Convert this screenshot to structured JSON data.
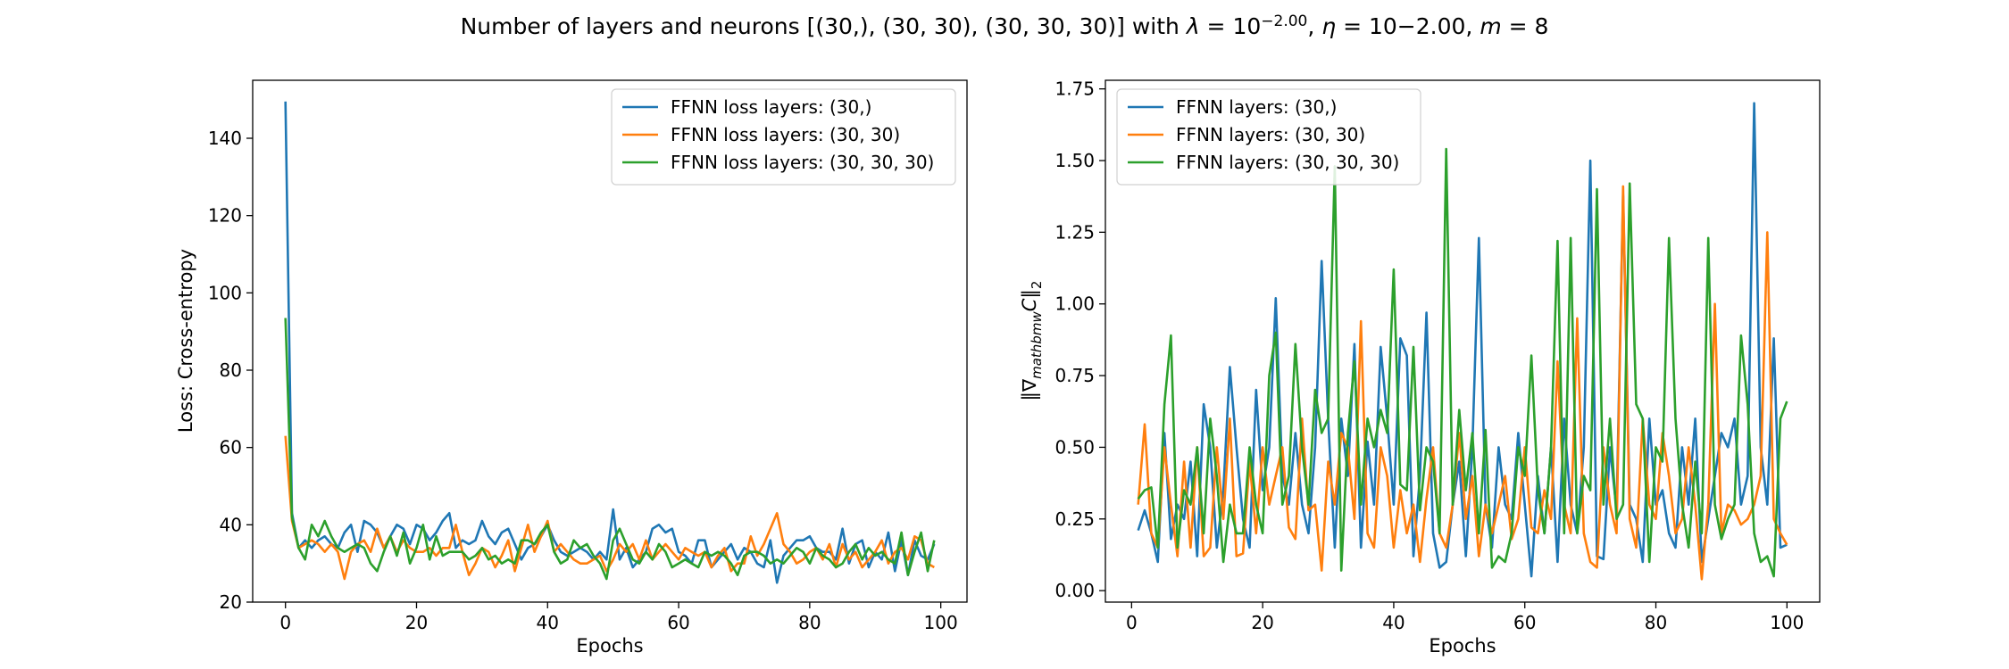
{
  "figure": {
    "suptitle_text": "Number of layers and neurons [(30,), (30, 30), (30, 30, 30)] with "
  },
  "chart_data": [
    {
      "type": "line",
      "xlabel": "Epochs",
      "ylabel": "Loss: Cross-entropy",
      "xlim": [
        -5,
        104
      ],
      "ylim": [
        20,
        155
      ],
      "xticks": [
        0,
        20,
        40,
        60,
        80,
        100
      ],
      "yticks": [
        20,
        40,
        60,
        80,
        100,
        120,
        140
      ],
      "grid": false,
      "legend_position": "top-right",
      "x_start": 0,
      "series": [
        {
          "name": "FFNN loss layers: (30,)",
          "color": "#1f77b4",
          "values": [
            149.5,
            43,
            34,
            36,
            34,
            36,
            37,
            35,
            34,
            38,
            40,
            33,
            41,
            40,
            38,
            34,
            37,
            40,
            39,
            35,
            40,
            39,
            36,
            38,
            41,
            43,
            34,
            36,
            35,
            36,
            41,
            37,
            35,
            38,
            39,
            35,
            31,
            34,
            35,
            37,
            40,
            36,
            33,
            32,
            33,
            34,
            33,
            31,
            33,
            31,
            44,
            31,
            34,
            29,
            31,
            33,
            39,
            40,
            38,
            39,
            33,
            32,
            30,
            36,
            36,
            29,
            31,
            33,
            35,
            31,
            34,
            33,
            30,
            29,
            36,
            25,
            32,
            34,
            36,
            36,
            37,
            34,
            33,
            33,
            31,
            39,
            30,
            35,
            36,
            29,
            33,
            31,
            38,
            28,
            36,
            27,
            36,
            32,
            31,
            35
          ]
        },
        {
          "name": "FFNN loss layers: (30, 30)",
          "color": "#ff7f0e",
          "values": [
            63,
            41,
            34,
            35,
            36,
            35,
            33,
            35,
            33,
            26,
            33,
            35,
            36,
            33,
            39,
            34,
            37,
            33,
            36,
            34,
            33,
            33,
            34,
            32,
            34,
            34,
            40,
            33,
            27,
            30,
            34,
            33,
            29,
            32,
            36,
            28,
            34,
            40,
            33,
            37,
            41,
            33,
            35,
            33,
            31,
            30,
            30,
            31,
            32,
            28,
            31,
            35,
            33,
            35,
            31,
            36,
            31,
            33,
            35,
            33,
            31,
            34,
            33,
            32,
            33,
            29,
            32,
            34,
            28,
            30,
            30,
            37,
            32,
            35,
            39,
            43,
            35,
            33,
            30,
            31,
            33,
            34,
            31,
            35,
            29,
            35,
            31,
            33,
            29,
            31,
            33,
            36,
            30,
            33,
            34,
            31,
            37,
            36,
            30,
            29
          ]
        },
        {
          "name": "FFNN loss layers: (30, 30, 30)",
          "color": "#2ca02c",
          "values": [
            93.5,
            42,
            34,
            31,
            40,
            37,
            41,
            37,
            34,
            33,
            34,
            35,
            34,
            30,
            28,
            33,
            37,
            32,
            38,
            30,
            34,
            40,
            31,
            37,
            32,
            33,
            33,
            33,
            31,
            32,
            34,
            31,
            32,
            30,
            31,
            30,
            36,
            36,
            35,
            38,
            40,
            33,
            30,
            31,
            36,
            34,
            35,
            32,
            30,
            26,
            36,
            39,
            35,
            31,
            30,
            33,
            31,
            35,
            33,
            29,
            30,
            31,
            30,
            29,
            33,
            32,
            33,
            32,
            30,
            27,
            32,
            33,
            33,
            32,
            30,
            31,
            30,
            32,
            34,
            33,
            30,
            34,
            32,
            31,
            29,
            30,
            33,
            35,
            31,
            34,
            32,
            33,
            31,
            30,
            38,
            27,
            33,
            38,
            28,
            36
          ]
        }
      ]
    },
    {
      "type": "line",
      "xlabel": "Epochs",
      "ylabel_base": "‖∇",
      "ylabel_sub": "mathbmw",
      "ylabel_mid": "C‖",
      "ylabel_sub2": "2",
      "xlim": [
        -4,
        105
      ],
      "ylim": [
        -0.04,
        1.78
      ],
      "xticks": [
        0,
        20,
        40,
        60,
        80,
        100
      ],
      "yticks": [
        "0.00",
        "0.25",
        "0.50",
        "0.75",
        "1.00",
        "1.25",
        "1.50",
        "1.75"
      ],
      "grid": false,
      "legend_position": "top-left",
      "x_start": 1,
      "series": [
        {
          "name": "FFNN layers: (30,)",
          "color": "#1f77b4",
          "values": [
            0.21,
            0.28,
            0.2,
            0.1,
            0.55,
            0.18,
            0.3,
            0.25,
            0.45,
            0.12,
            0.65,
            0.5,
            0.15,
            0.35,
            0.78,
            0.5,
            0.25,
            0.15,
            0.7,
            0.35,
            0.5,
            1.02,
            0.4,
            0.3,
            0.55,
            0.3,
            0.2,
            0.5,
            1.15,
            0.6,
            0.15,
            0.6,
            0.4,
            0.86,
            0.15,
            0.52,
            0.3,
            0.85,
            0.6,
            0.3,
            0.88,
            0.82,
            0.12,
            0.4,
            0.97,
            0.2,
            0.08,
            0.1,
            0.3,
            0.45,
            0.12,
            0.5,
            1.23,
            0.3,
            0.15,
            0.5,
            0.3,
            0.25,
            0.55,
            0.3,
            0.05,
            0.4,
            0.2,
            0.5,
            0.1,
            0.6,
            0.3,
            0.2,
            0.5,
            1.5,
            0.12,
            0.11,
            0.5,
            0.28,
            1.38,
            0.3,
            0.25,
            0.1,
            0.6,
            0.3,
            0.35,
            0.2,
            0.15,
            0.5,
            0.3,
            0.6,
            0.1,
            0.25,
            0.4,
            0.55,
            0.5,
            0.6,
            0.3,
            0.4,
            1.7,
            0.5,
            0.3,
            0.88,
            0.15,
            0.16
          ]
        },
        {
          "name": "FFNN layers: (30, 30)",
          "color": "#ff7f0e",
          "values": [
            0.3,
            0.58,
            0.2,
            0.15,
            0.5,
            0.3,
            0.12,
            0.45,
            0.15,
            0.5,
            0.12,
            0.15,
            0.5,
            0.25,
            0.6,
            0.12,
            0.13,
            0.45,
            0.2,
            0.5,
            0.3,
            0.4,
            0.5,
            0.22,
            0.18,
            0.6,
            0.28,
            0.3,
            0.07,
            0.45,
            0.3,
            0.55,
            0.5,
            0.25,
            0.94,
            0.2,
            0.15,
            0.5,
            0.4,
            0.15,
            0.35,
            0.2,
            0.3,
            0.1,
            0.32,
            0.5,
            0.2,
            0.15,
            0.3,
            0.55,
            0.25,
            0.4,
            0.12,
            0.3,
            0.2,
            0.3,
            0.4,
            0.18,
            0.25,
            0.5,
            0.22,
            0.2,
            0.35,
            0.25,
            0.8,
            0.3,
            0.2,
            0.95,
            0.2,
            0.1,
            0.08,
            0.5,
            0.3,
            0.2,
            1.41,
            0.25,
            0.15,
            0.6,
            0.3,
            0.25,
            0.55,
            0.4,
            0.2,
            0.25,
            0.5,
            0.3,
            0.04,
            0.3,
            1.0,
            0.2,
            0.3,
            0.28,
            0.23,
            0.25,
            0.3,
            0.4,
            1.25,
            0.25,
            0.2,
            0.16
          ]
        },
        {
          "name": "FFNN layers: (30, 30, 30)",
          "color": "#2ca02c",
          "values": [
            0.32,
            0.35,
            0.36,
            0.15,
            0.65,
            0.89,
            0.15,
            0.35,
            0.3,
            0.5,
            0.2,
            0.6,
            0.4,
            0.1,
            0.3,
            0.2,
            0.2,
            0.5,
            0.3,
            0.2,
            0.75,
            0.9,
            0.3,
            0.4,
            0.86,
            0.5,
            0.3,
            0.7,
            0.55,
            0.6,
            1.48,
            0.07,
            0.55,
            0.8,
            0.3,
            0.6,
            0.5,
            0.63,
            0.55,
            1.12,
            0.37,
            0.35,
            0.85,
            0.28,
            0.5,
            0.45,
            0.2,
            1.54,
            0.3,
            0.63,
            0.35,
            0.55,
            0.2,
            0.56,
            0.08,
            0.12,
            0.1,
            0.2,
            0.5,
            0.4,
            0.82,
            0.35,
            0.2,
            0.5,
            1.22,
            0.2,
            1.23,
            0.2,
            0.4,
            0.35,
            1.4,
            0.3,
            0.6,
            0.25,
            0.3,
            1.42,
            0.65,
            0.6,
            0.1,
            0.5,
            0.45,
            1.23,
            0.6,
            0.3,
            0.15,
            0.45,
            0.2,
            1.23,
            0.3,
            0.18,
            0.25,
            0.3,
            0.89,
            0.65,
            0.2,
            0.1,
            0.12,
            0.05,
            0.6,
            0.66
          ]
        }
      ]
    }
  ]
}
